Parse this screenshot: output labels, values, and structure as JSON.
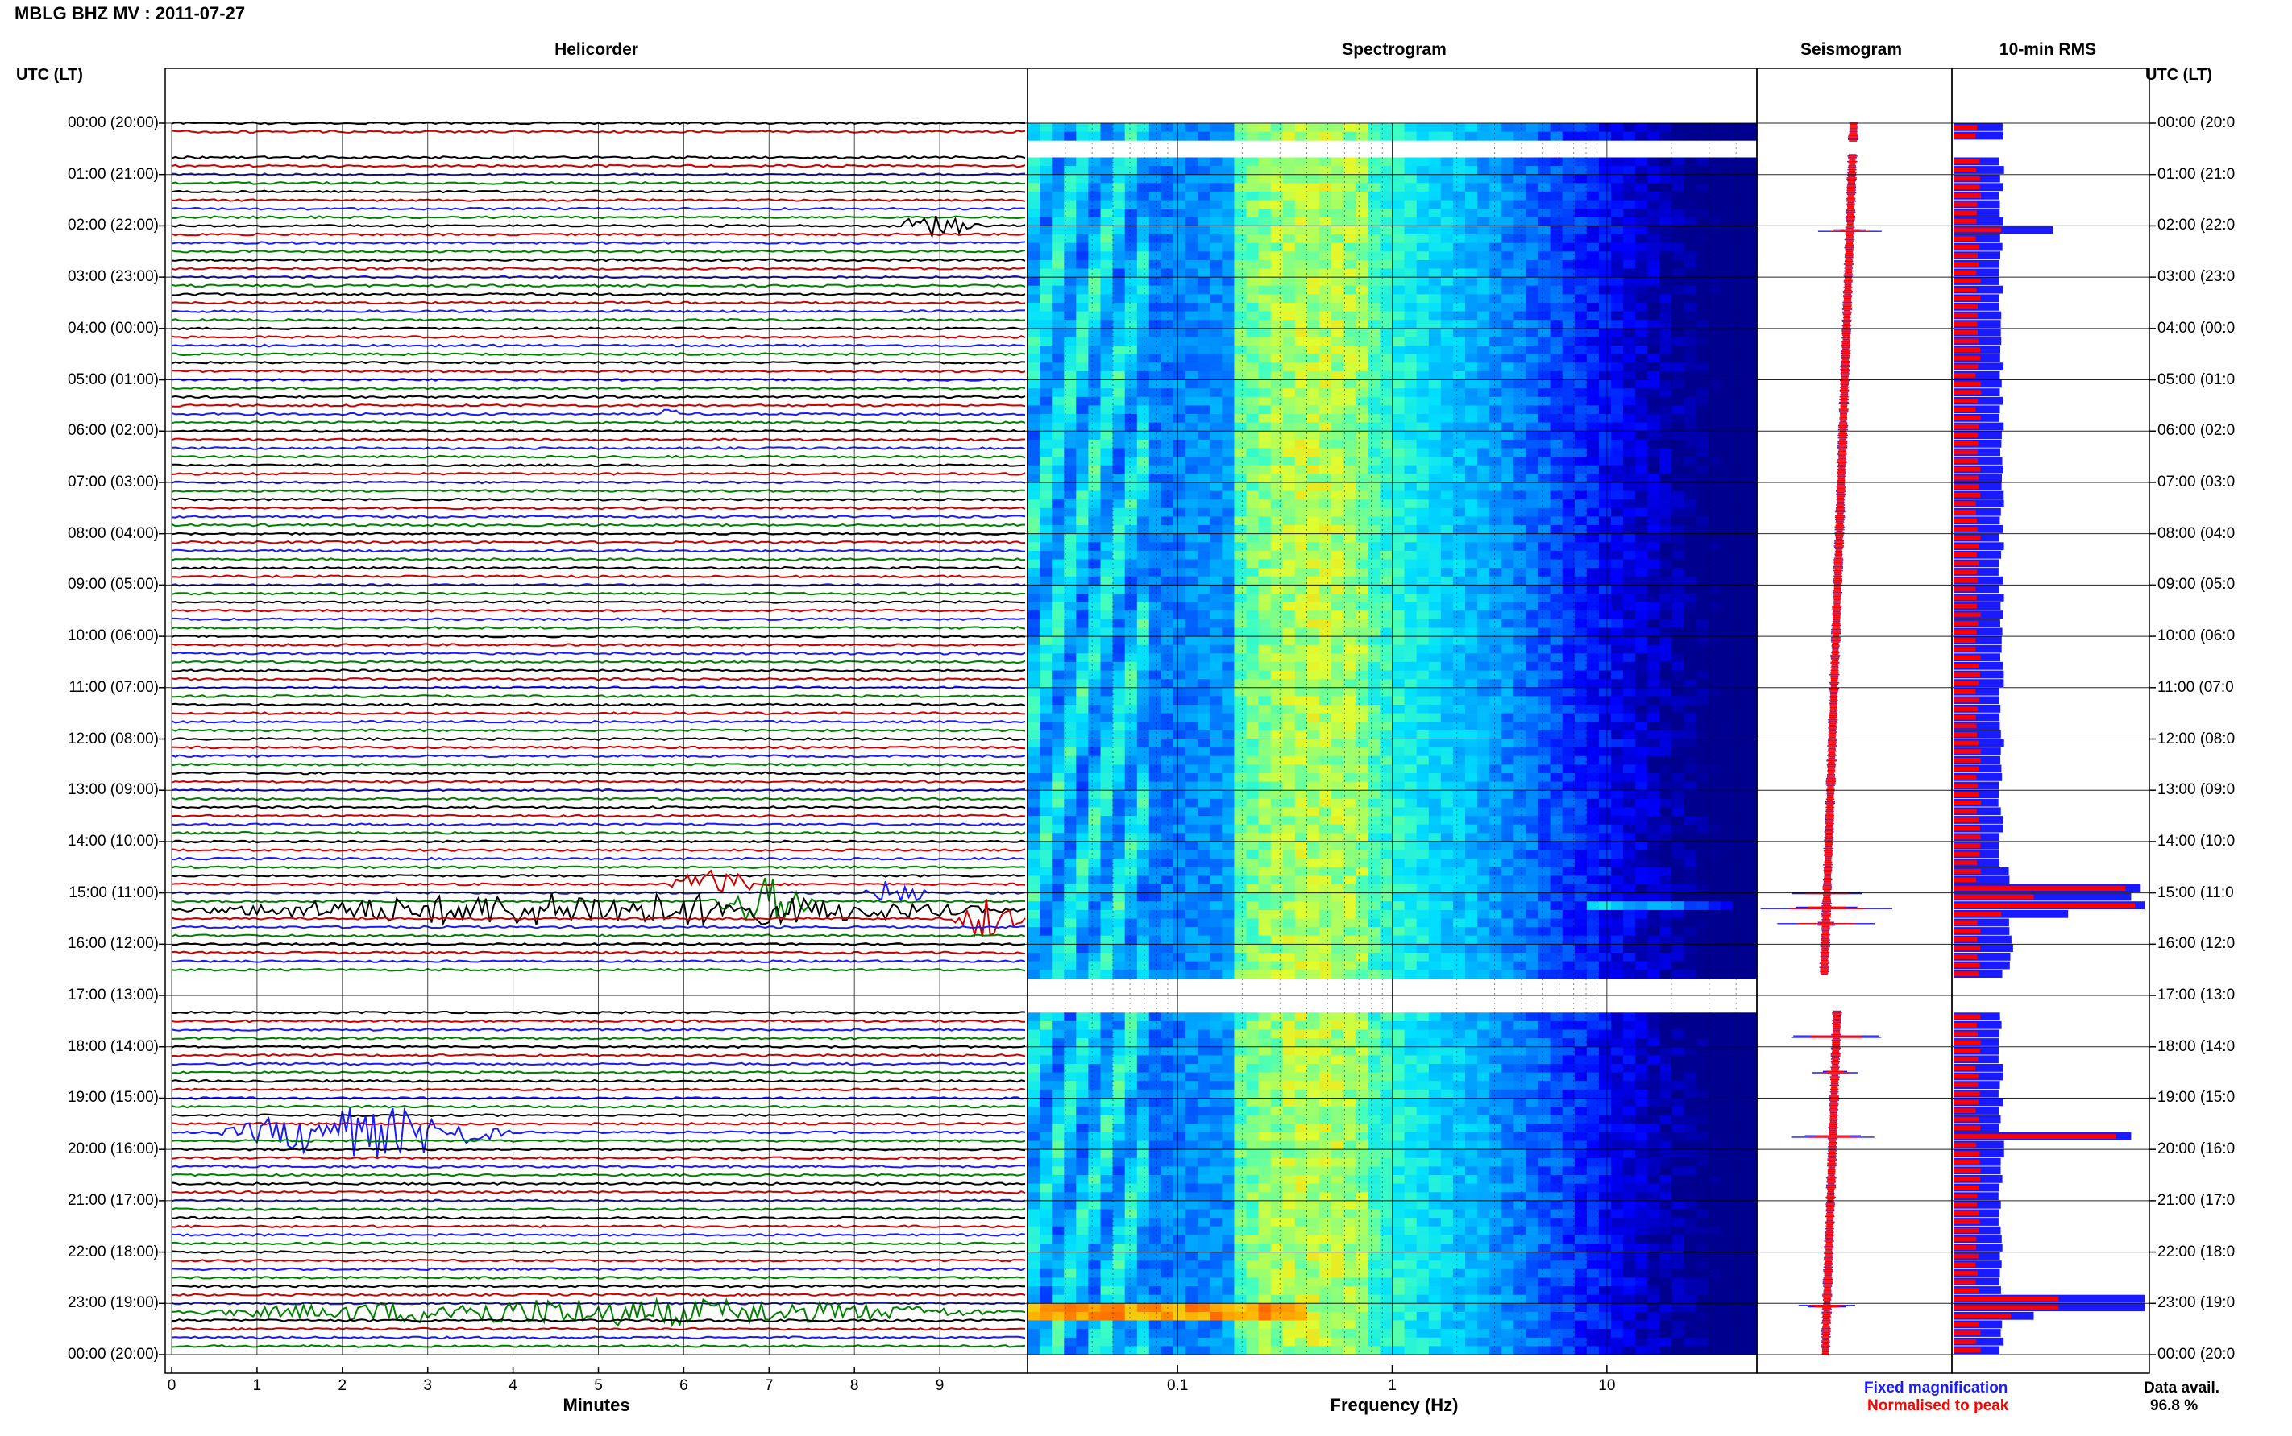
{
  "title": "MBLG BHZ MV : 2011-07-27",
  "left_axis_title": "UTC (LT)",
  "right_axis_title": "UTC (LT)",
  "time_labels": [
    "00:00 (20:00)",
    "01:00 (21:00)",
    "02:00 (22:00)",
    "03:00 (23:00)",
    "04:00 (00:00)",
    "05:00 (01:00)",
    "06:00 (02:00)",
    "07:00 (03:00)",
    "08:00 (04:00)",
    "09:00 (05:00)",
    "10:00 (06:00)",
    "11:00 (07:00)",
    "12:00 (08:00)",
    "13:00 (09:00)",
    "14:00 (10:00)",
    "15:00 (11:00)",
    "16:00 (12:00)",
    "17:00 (13:00)",
    "18:00 (14:00)",
    "19:00 (15:00)",
    "20:00 (16:00)",
    "21:00 (17:00)",
    "22:00 (18:00)",
    "23:00 (19:00)",
    "00:00 (20:00)"
  ],
  "right_time_labels": [
    "00:00 (20:0",
    "01:00 (21:0",
    "02:00 (22:0",
    "03:00 (23:0",
    "04:00 (00:0",
    "05:00 (01:0",
    "06:00 (02:0",
    "07:00 (03:0",
    "08:00 (04:0",
    "09:00 (05:0",
    "10:00 (06:0",
    "11:00 (07:0",
    "12:00 (08:0",
    "13:00 (09:0",
    "14:00 (10:0",
    "15:00 (11:0",
    "16:00 (12:0",
    "17:00 (13:0",
    "18:00 (14:0",
    "19:00 (15:0",
    "20:00 (16:0",
    "21:00 (17:0",
    "22:00 (18:0",
    "23:00 (19:0",
    "00:00 (20:0"
  ],
  "panels": {
    "helicorder": {
      "title": "Helicorder",
      "xlabel": "Minutes",
      "ticks": [
        "0",
        "1",
        "2",
        "3",
        "4",
        "5",
        "6",
        "7",
        "8",
        "9"
      ]
    },
    "spectrogram": {
      "title": "Spectrogram",
      "xlabel": "Frequency (Hz)",
      "ticks": [
        "0.1",
        "1",
        "10"
      ]
    },
    "seismogram": {
      "title": "Seismogram"
    },
    "rms": {
      "title": "10-min RMS"
    }
  },
  "legend": {
    "fixed": "Fixed magnification",
    "normalised": "Normalised to peak"
  },
  "data_avail": {
    "label": "Data avail.",
    "value": "96.8 %"
  },
  "colors": {
    "trace_cycle": [
      "#000000",
      "#cc0000",
      "#1a1aff",
      "#008000"
    ],
    "fixed": "#1a1aff",
    "normalised": "#ff0000",
    "grid": "#000000"
  },
  "chart_data": [
    {
      "type": "line",
      "name": "helicorder",
      "x_unit": "minutes",
      "xlim": [
        0,
        10
      ],
      "rows_per_hour": 6,
      "ylim_hours": [
        0,
        24
      ],
      "data_gaps_hours": [
        [
          0.3,
          0.55
        ],
        [
          16.6,
          17.25
        ]
      ],
      "events": [
        {
          "hour": 1.95,
          "minute_start": 8.4,
          "minute_end": 9.5,
          "amplitude": 0.6
        },
        {
          "hour": 5.65,
          "minute_start": 5.7,
          "minute_end": 6.0,
          "amplitude": 0.3
        },
        {
          "hour": 14.9,
          "minute_start": 5.8,
          "minute_end": 6.9,
          "amplitude": 0.9
        },
        {
          "hour": 15.1,
          "minute_start": 6.3,
          "minute_end": 7.6,
          "amplitude": 1.4
        },
        {
          "hour": 14.95,
          "minute_start": 8.1,
          "minute_end": 8.9,
          "amplitude": 0.8
        },
        {
          "hour": 15.3,
          "minute_start": 0.0,
          "minute_end": 10.0,
          "amplitude": 1.0
        },
        {
          "hour": 15.45,
          "minute_start": 9.1,
          "minute_end": 10.0,
          "amplitude": 1.3
        },
        {
          "hour": 19.65,
          "minute_start": 0.5,
          "minute_end": 4.0,
          "amplitude": 1.5
        },
        {
          "hour": 23.1,
          "minute_start": 0.0,
          "minute_end": 10.0,
          "amplitude": 0.8
        }
      ]
    },
    {
      "type": "heatmap",
      "name": "spectrogram",
      "x_scale": "log",
      "xlim_hz": [
        0.02,
        50
      ],
      "ylim_hours": [
        0,
        24
      ],
      "data_gaps_hours": [
        [
          0.35,
          0.6
        ],
        [
          16.6,
          17.3
        ]
      ]
    },
    {
      "type": "line",
      "name": "seismogram",
      "ylim_hours": [
        0,
        24
      ],
      "spikes": [
        {
          "hour": 2.1,
          "amplitude": 0.45
        },
        {
          "hour": 15.0,
          "amplitude": 0.7
        },
        {
          "hour": 15.3,
          "amplitude": 1.0
        },
        {
          "hour": 15.6,
          "amplitude": 0.55
        },
        {
          "hour": 17.8,
          "amplitude": 0.9
        },
        {
          "hour": 18.5,
          "amplitude": 0.3
        },
        {
          "hour": 19.75,
          "amplitude": 0.7
        },
        {
          "hour": 23.05,
          "amplitude": 0.45
        }
      ]
    },
    {
      "type": "bar",
      "name": "10-min RMS",
      "orientation": "horizontal",
      "interval_minutes": 10,
      "ylim_hours": [
        0,
        24
      ],
      "series": [
        {
          "name": "Fixed magnification",
          "color": "#1a1aff",
          "baseline": 0.25
        },
        {
          "name": "Normalised to peak",
          "color": "#ff0000",
          "baseline": 0.13
        }
      ],
      "peaks": [
        {
          "hour": 2.05,
          "fixed": 0.52,
          "normalised": 0.25
        },
        {
          "hour": 14.95,
          "fixed": 0.98,
          "normalised": 0.9
        },
        {
          "hour": 15.1,
          "fixed": 0.93,
          "normalised": 0.42
        },
        {
          "hour": 15.25,
          "fixed": 1.0,
          "normalised": 0.95
        },
        {
          "hour": 15.4,
          "fixed": 0.6,
          "normalised": 0.25
        },
        {
          "hour": 19.75,
          "fixed": 0.93,
          "normalised": 0.85
        },
        {
          "hour": 23.0,
          "fixed": 1.0,
          "normalised": 0.55
        },
        {
          "hour": 23.15,
          "fixed": 0.6,
          "normalised": 0.42
        },
        {
          "hour": 23.3,
          "fixed": 0.42,
          "normalised": 0.3
        }
      ]
    }
  ]
}
